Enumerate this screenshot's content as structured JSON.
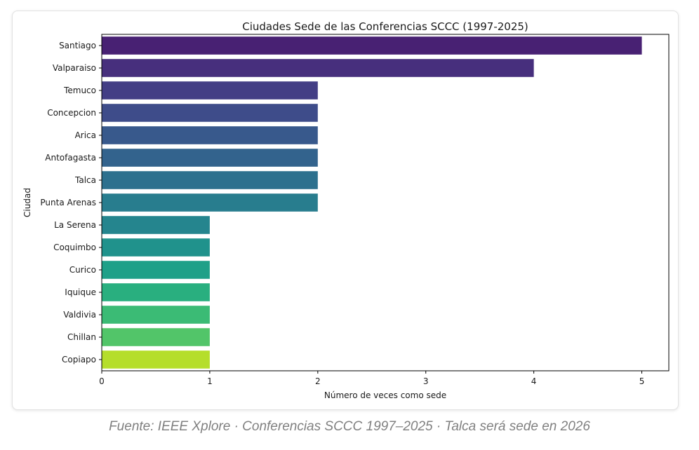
{
  "chart_data": {
    "type": "bar",
    "orientation": "horizontal",
    "title": "Ciudades Sede de las Conferencias SCCC (1997-2025)",
    "xlabel": "Número de veces como sede",
    "ylabel": "Ciudad",
    "xlim": [
      0,
      5.25
    ],
    "xticks": [
      0,
      1,
      2,
      3,
      4,
      5
    ],
    "grid": false,
    "categories": [
      "Santiago",
      "Valparaiso",
      "Temuco",
      "Concepcion",
      "Arica",
      "Antofagasta",
      "Talca",
      "Punta Arenas",
      "La Serena",
      "Coquimbo",
      "Curico",
      "Iquique",
      "Valdivia",
      "Chillan",
      "Copiapo"
    ],
    "values": [
      5,
      4,
      2,
      2,
      2,
      2,
      2,
      2,
      1,
      1,
      1,
      1,
      1,
      1,
      1
    ],
    "colors": [
      "#482173",
      "#472f7d",
      "#433e85",
      "#3e4c8a",
      "#38598c",
      "#33638d",
      "#2d708e",
      "#287d8e",
      "#25858e",
      "#20928c",
      "#1fa088",
      "#29af7f",
      "#3bbb75",
      "#52c569",
      "#b5de2b"
    ]
  },
  "caption": "Fuente: IEEE Xplore · Conferencias SCCC 1997–2025 · Talca será sede en 2026"
}
